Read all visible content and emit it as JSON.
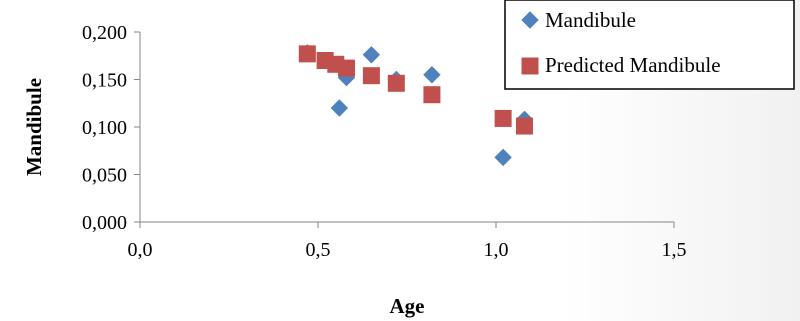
{
  "chart_data": {
    "type": "scatter",
    "title": "",
    "xlabel": "Age",
    "ylabel": "Mandibule",
    "xlim": [
      0.0,
      1.5
    ],
    "ylim": [
      0.0,
      0.2
    ],
    "x_ticks": [
      "0,0",
      "0,5",
      "1,0",
      "1,5"
    ],
    "y_ticks": [
      "0,000",
      "0,050",
      "0,100",
      "0,150",
      "0,200"
    ],
    "grid": false,
    "legend_position": "top-right",
    "series": [
      {
        "name": "Mandibule",
        "marker": "diamond",
        "color": "#4f81bd",
        "points": [
          {
            "x": 0.47,
            "y": 0.178
          },
          {
            "x": 0.52,
            "y": 0.17
          },
          {
            "x": 0.56,
            "y": 0.12
          },
          {
            "x": 0.58,
            "y": 0.152
          },
          {
            "x": 0.65,
            "y": 0.176
          },
          {
            "x": 0.72,
            "y": 0.15
          },
          {
            "x": 0.82,
            "y": 0.155
          },
          {
            "x": 1.02,
            "y": 0.068
          },
          {
            "x": 1.08,
            "y": 0.108
          }
        ]
      },
      {
        "name": "Predicted Mandibule",
        "marker": "square",
        "color": "#c0504d",
        "points": [
          {
            "x": 0.47,
            "y": 0.177
          },
          {
            "x": 0.52,
            "y": 0.17
          },
          {
            "x": 0.55,
            "y": 0.166
          },
          {
            "x": 0.58,
            "y": 0.162
          },
          {
            "x": 0.65,
            "y": 0.154
          },
          {
            "x": 0.72,
            "y": 0.146
          },
          {
            "x": 0.82,
            "y": 0.134
          },
          {
            "x": 1.02,
            "y": 0.109
          },
          {
            "x": 1.08,
            "y": 0.101
          }
        ]
      }
    ]
  }
}
